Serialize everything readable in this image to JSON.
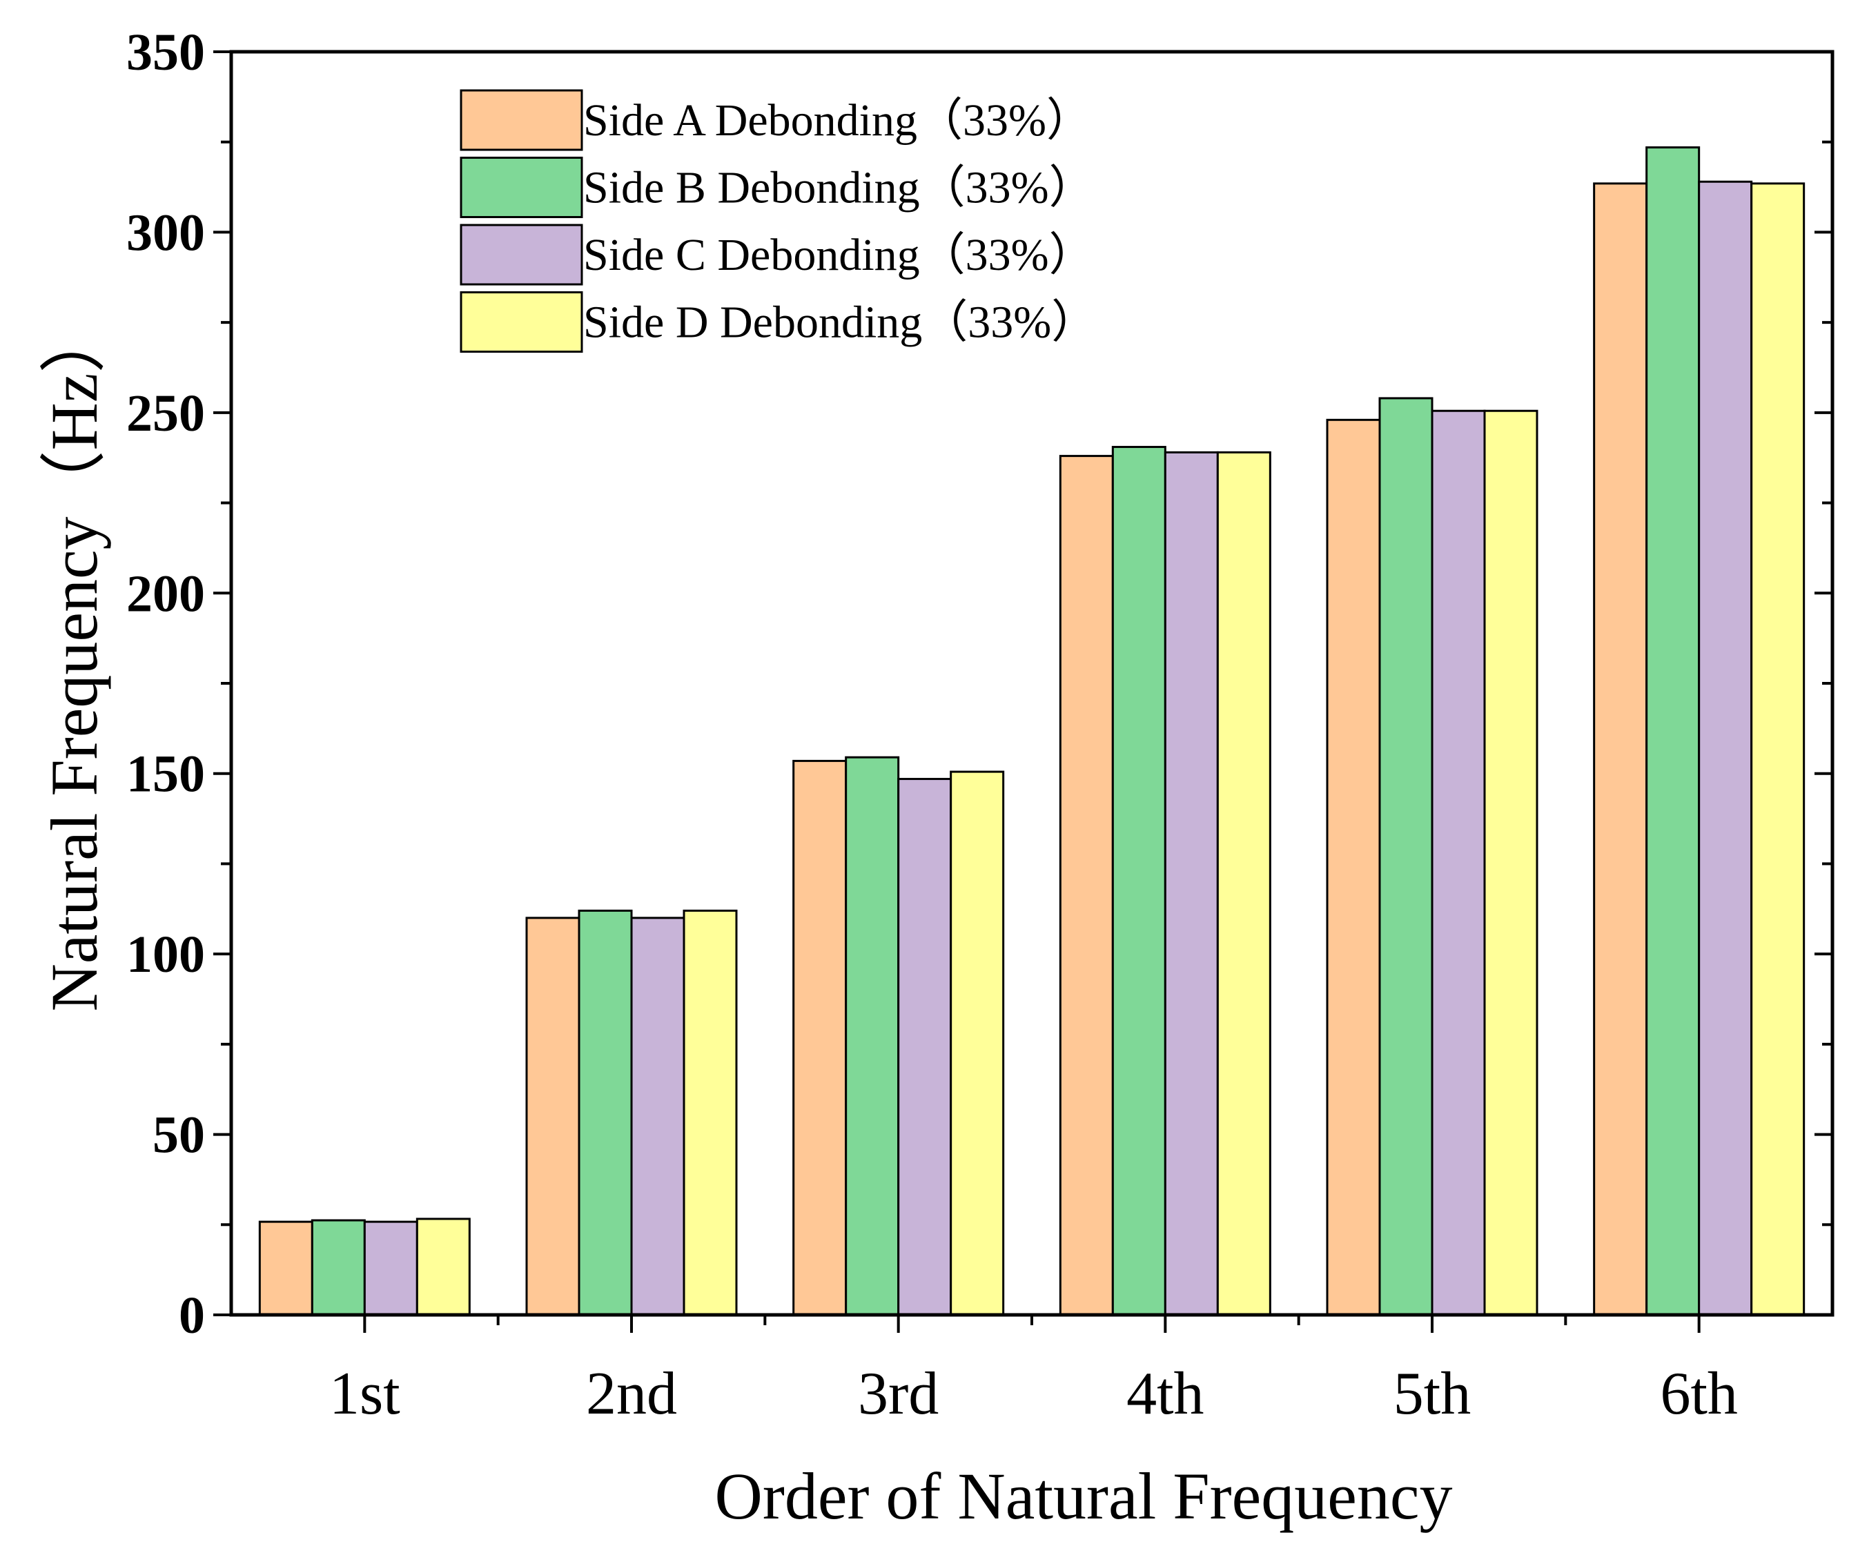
{
  "chart_data": {
    "type": "bar",
    "title": "",
    "xlabel": "Order of Natural Frequency",
    "ylabel": "Natural Frequency（Hz）",
    "ylim": [
      0,
      350
    ],
    "yticks": [
      0,
      50,
      100,
      150,
      200,
      250,
      300,
      350
    ],
    "ytick_labels": [
      "0",
      "50",
      "100",
      "150",
      "200",
      "250",
      "300",
      "350"
    ],
    "categories": [
      "1st",
      "2nd",
      "3rd",
      "4th",
      "5th",
      "6th"
    ],
    "legend_position": "top-left",
    "grid": false,
    "series": [
      {
        "name": "Side A Debonding（33%）",
        "color": "#FFC896",
        "values": [
          25.8,
          110,
          153.5,
          238,
          248,
          313.5
        ]
      },
      {
        "name": "Side B Debonding（33%）",
        "color": "#7FD897",
        "values": [
          26.2,
          112,
          154.5,
          240.5,
          254,
          323.5
        ]
      },
      {
        "name": "Side C Debonding（33%）",
        "color": "#C8B4D8",
        "values": [
          25.8,
          110,
          148.5,
          239,
          250.5,
          314
        ]
      },
      {
        "name": "Side D Debonding（33%）",
        "color": "#FFFF99",
        "values": [
          26.6,
          112,
          150.5,
          239,
          250.5,
          313.5
        ]
      }
    ]
  }
}
